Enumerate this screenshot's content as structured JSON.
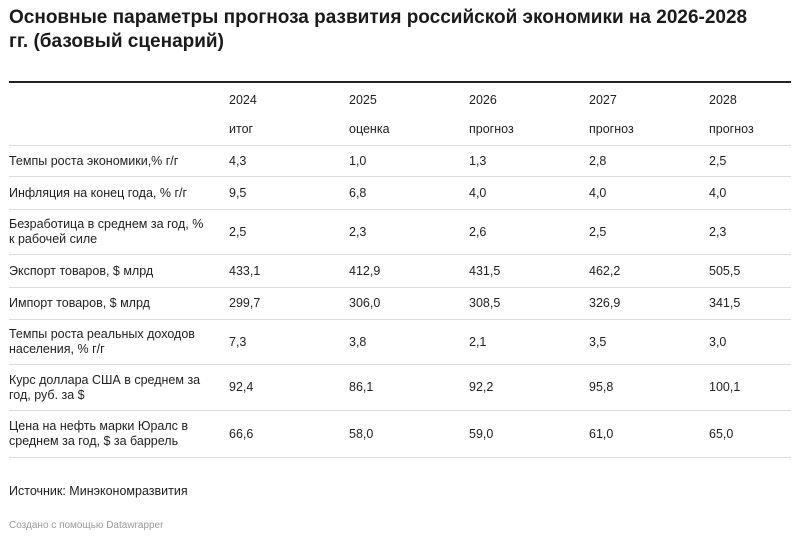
{
  "title": "Основные параметры прогноза развития российской экономики на 2026-2028 гг. (базовый сценарий)",
  "table": {
    "header": [
      "2024",
      "2025",
      "2026",
      "2027",
      "2028"
    ],
    "subheader": [
      "итог",
      "оценка",
      "прогноз",
      "прогноз",
      "прогноз"
    ],
    "rows": [
      [
        "Темпы роста экономики,% г/г",
        "4,3",
        "1,0",
        "1,3",
        "2,8",
        "2,5"
      ],
      [
        "Инфляция на конец года, % г/г",
        "9,5",
        "6,8",
        "4,0",
        "4,0",
        "4,0"
      ],
      [
        "Безработица в среднем за год, % к рабочей силе",
        "2,5",
        "2,3",
        "2,6",
        "2,5",
        "2,3"
      ],
      [
        "Экспорт товаров, $ млрд",
        "433,1",
        "412,9",
        "431,5",
        "462,2",
        "505,5"
      ],
      [
        "Импорт товаров, $ млрд",
        "299,7",
        "306,0",
        "308,5",
        "326,9",
        "341,5"
      ],
      [
        "Темпы роста реальных доходов населения, % г/г",
        "7,3",
        "3,8",
        "2,1",
        "3,5",
        "3,0"
      ],
      [
        "Курс доллара США в среднем за год, руб. за $",
        "92,4",
        "86,1",
        "92,2",
        "95,8",
        "100,1"
      ],
      [
        "Цена на нефть марки Юралс в среднем за год, $ за баррель",
        "66,6",
        "58,0",
        "59,0",
        "61,0",
        "65,0"
      ]
    ]
  },
  "source": "Источник: Минэкономразвития",
  "credit": "Создано с помощью Datawrapper"
}
